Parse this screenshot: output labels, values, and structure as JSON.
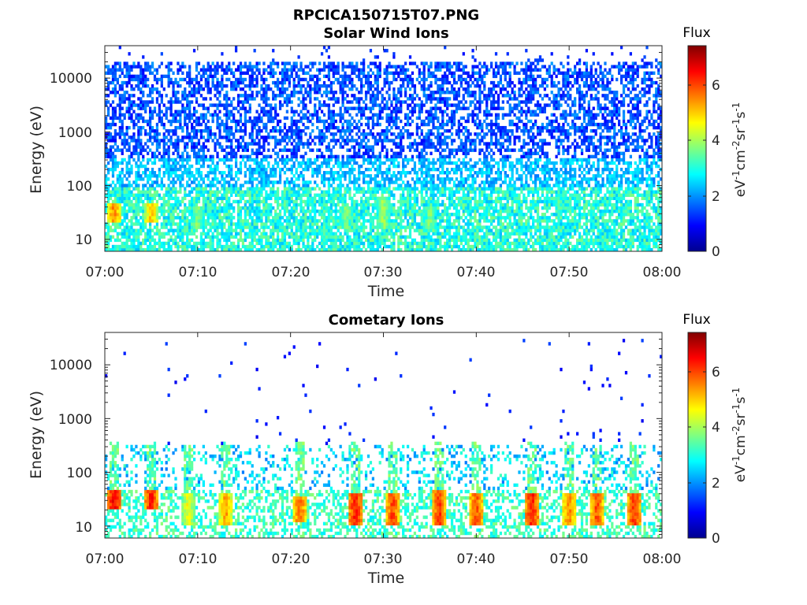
{
  "figure": {
    "filename_title": "RPCICA150715T07.PNG"
  },
  "chart_data": [
    {
      "type": "heatmap",
      "title": "Solar Wind Ions",
      "xlabel": "Time",
      "ylabel": "Energy (eV)",
      "xticks": [
        "07:00",
        "07:10",
        "07:20",
        "07:30",
        "07:40",
        "07:50",
        "08:00"
      ],
      "xlim": [
        "07:00",
        "08:00"
      ],
      "yticks": [
        10,
        100,
        1000,
        10000
      ],
      "yticklabels": [
        "10",
        "100",
        "1000",
        "10000"
      ],
      "ylim": [
        6,
        40000
      ],
      "yscale": "log",
      "colorbar": {
        "title": "Flux",
        "units": "eV-1cm-2sr-1s-1",
        "ticks": [
          0,
          2,
          4,
          6
        ],
        "range": [
          0,
          7.4
        ],
        "colormap": "jet"
      },
      "data_summary": "Broad background of flux ~1-2 at 300-20000 eV, ~2.5-3.5 below 100 eV; brief enhancements to ~5-6 near 25-40 eV around 07:01 and 07:05; faint dispersive streaks at 07:10, 07:26, 07:30, 07:35.",
      "features": [
        {
          "time": "07:01",
          "energy_eV": [
            20,
            45
          ],
          "flux_peak": 6.0
        },
        {
          "time": "07:05",
          "energy_eV": [
            20,
            45
          ],
          "flux_peak": 5.5
        },
        {
          "time": "07:10",
          "energy_eV": [
            15,
            40
          ],
          "flux_peak": 4.2
        },
        {
          "time": "07:26",
          "energy_eV": [
            15,
            40
          ],
          "flux_peak": 4.2
        },
        {
          "time": "07:30",
          "energy_eV": [
            15,
            60
          ],
          "flux_peak": 4.4
        },
        {
          "time": "07:35",
          "energy_eV": [
            15,
            40
          ],
          "flux_peak": 4.2
        }
      ]
    },
    {
      "type": "heatmap",
      "title": "Cometary Ions",
      "xlabel": "Time",
      "ylabel": "Energy (eV)",
      "xticks": [
        "07:00",
        "07:10",
        "07:20",
        "07:30",
        "07:40",
        "07:50",
        "08:00"
      ],
      "xlim": [
        "07:00",
        "08:00"
      ],
      "yticks": [
        10,
        100,
        1000,
        10000
      ],
      "yticklabels": [
        "10",
        "100",
        "1000",
        "10000"
      ],
      "ylim": [
        6,
        40000
      ],
      "yscale": "log",
      "colorbar": {
        "title": "Flux",
        "units": "eV-1cm-2sr-1s-1",
        "ticks": [
          0,
          2,
          4,
          6
        ],
        "range": [
          0,
          7.4
        ],
        "colormap": "jet"
      },
      "data_summary": "Flux concentrated below ~300 eV with periodic bursts peaking ~6-7 at 10-40 eV; sparse isolated counts (~1) up to ~30000 eV.",
      "features": [
        {
          "time": "07:01",
          "energy_eV": [
            20,
            45
          ],
          "flux_peak": 7.0
        },
        {
          "time": "07:05",
          "energy_eV": [
            20,
            45
          ],
          "flux_peak": 6.8
        },
        {
          "time": "07:09",
          "energy_eV": [
            10,
            40
          ],
          "flux_peak": 5.0
        },
        {
          "time": "07:13",
          "energy_eV": [
            10,
            40
          ],
          "flux_peak": 5.8
        },
        {
          "time": "07:21",
          "energy_eV": [
            12,
            35
          ],
          "flux_peak": 6.2
        },
        {
          "time": "07:27",
          "energy_eV": [
            10,
            40
          ],
          "flux_peak": 6.8
        },
        {
          "time": "07:31",
          "energy_eV": [
            10,
            40
          ],
          "flux_peak": 6.5
        },
        {
          "time": "07:36",
          "energy_eV": [
            10,
            45
          ],
          "flux_peak": 6.6
        },
        {
          "time": "07:40",
          "energy_eV": [
            10,
            40
          ],
          "flux_peak": 6.4
        },
        {
          "time": "07:46",
          "energy_eV": [
            10,
            40
          ],
          "flux_peak": 6.8
        },
        {
          "time": "07:50",
          "energy_eV": [
            10,
            40
          ],
          "flux_peak": 6.0
        },
        {
          "time": "07:53",
          "energy_eV": [
            10,
            40
          ],
          "flux_peak": 6.4
        },
        {
          "time": "07:57",
          "energy_eV": [
            10,
            40
          ],
          "flux_peak": 6.6
        }
      ]
    }
  ]
}
